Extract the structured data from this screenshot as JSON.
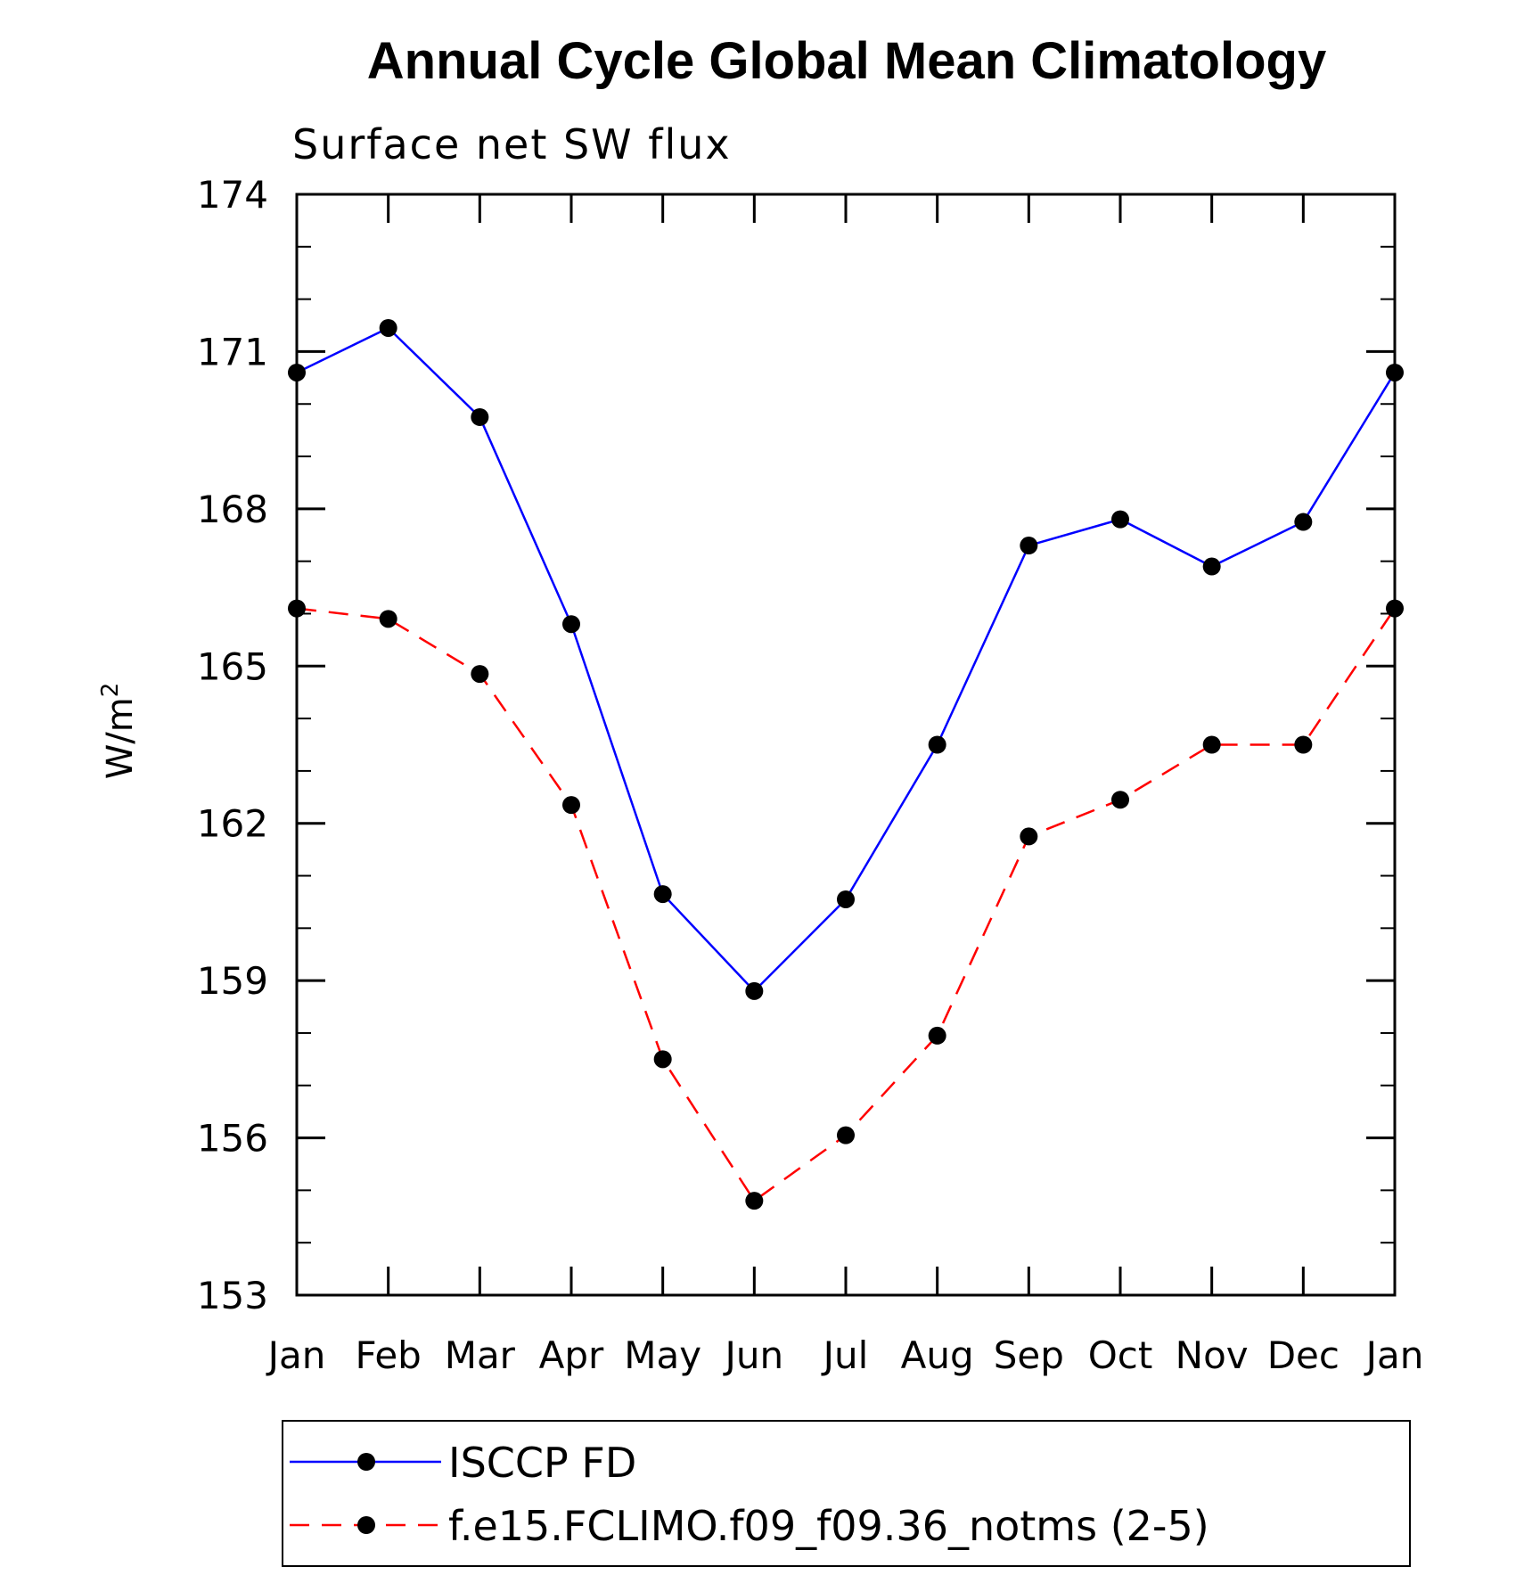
{
  "chart_data": {
    "type": "line",
    "title": "Annual Cycle Global Mean Climatology",
    "subtitle": "Surface net SW flux",
    "ylabel": "W/m",
    "ylabel_sup": "2",
    "categories": [
      "Jan",
      "Feb",
      "Mar",
      "Apr",
      "May",
      "Jun",
      "Jul",
      "Aug",
      "Sep",
      "Oct",
      "Nov",
      "Dec",
      "Jan"
    ],
    "ylim": [
      153,
      174
    ],
    "yticks": [
      153,
      156,
      159,
      162,
      165,
      168,
      171,
      174
    ],
    "grid": false,
    "legend_position": "bottom",
    "series": [
      {
        "name": "ISCCP FD",
        "color": "#0000ff",
        "style": "solid",
        "marker": "circle",
        "values": [
          170.6,
          171.45,
          169.75,
          165.8,
          160.65,
          158.8,
          160.55,
          163.5,
          167.3,
          167.8,
          166.9,
          167.75,
          170.6
        ]
      },
      {
        "name": "f.e15.FCLIMO.f09_f09.36_notms (2-5)",
        "color": "#ff0000",
        "style": "dashed",
        "marker": "circle",
        "values": [
          166.1,
          165.9,
          164.85,
          162.35,
          157.5,
          154.8,
          156.05,
          157.95,
          161.75,
          162.45,
          163.5,
          163.5,
          166.1
        ]
      }
    ]
  }
}
